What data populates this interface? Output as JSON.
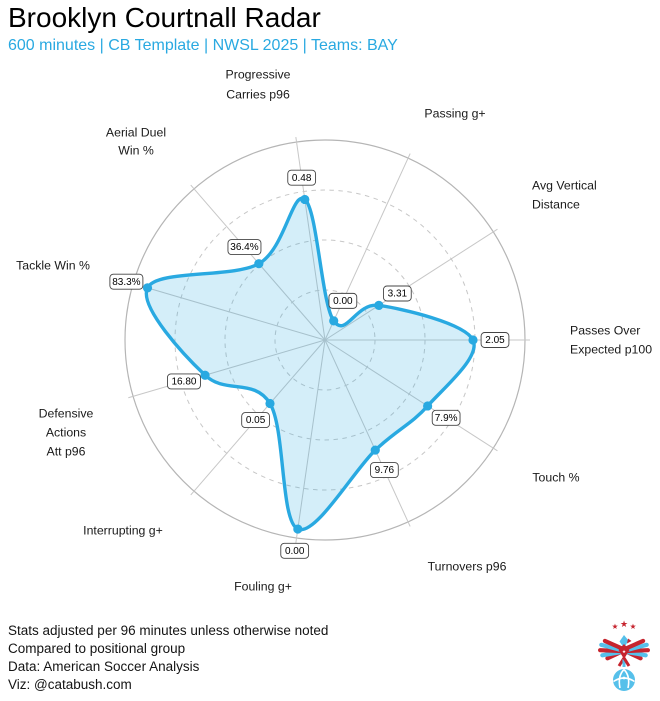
{
  "header": {
    "title": "Brooklyn Courtnall Radar",
    "subtitle": "600 minutes | CB Template | NWSL 2025 | Teams: BAY"
  },
  "chart_data": {
    "type": "radar",
    "title": "Brooklyn Courtnall Radar",
    "subtitle": "600 minutes | CB Template | NWSL 2025 | Teams: BAY",
    "axes": [
      {
        "label": [
          "Progressive",
          "Carries p96"
        ],
        "value": "0.48",
        "percentile_frac": 0.71
      },
      {
        "label": [
          "Passing g+"
        ],
        "value": "0.00",
        "percentile_frac": 0.105
      },
      {
        "label": [
          "Avg Vertical",
          "Distance"
        ],
        "value": "3.31",
        "percentile_frac": 0.32
      },
      {
        "label": [
          "Passes Over",
          "Expected p100"
        ],
        "value": "2.05",
        "percentile_frac": 0.74
      },
      {
        "label": [
          "Touch %"
        ],
        "value": "7.9%",
        "percentile_frac": 0.61
      },
      {
        "label": [
          "Turnovers p96"
        ],
        "value": "9.76",
        "percentile_frac": 0.605
      },
      {
        "label": [
          "Fouling g+"
        ],
        "value": "0.00",
        "percentile_frac": 0.955
      },
      {
        "label": [
          "Interrupting g+"
        ],
        "value": "0.05",
        "percentile_frac": 0.42
      },
      {
        "label": [
          "Defensive",
          "Actions",
          "Att p96"
        ],
        "value": "16.80",
        "percentile_frac": 0.625
      },
      {
        "label": [
          "Tackle Win %"
        ],
        "value": "83.3%",
        "percentile_frac": 0.925
      },
      {
        "label": [
          "Aerial Duel",
          "Win %"
        ],
        "value": "36.4%",
        "percentile_frac": 0.505
      }
    ],
    "layout_hints": {
      "start_angle_deg": 98.18,
      "direction": "clockwise",
      "rings_dashed_fracs": [
        0.25,
        0.5,
        0.75
      ],
      "outer_ring_frac": 1.0,
      "grid": "polar",
      "legend": "none"
    }
  },
  "colors": {
    "blue": "#29A9E1",
    "grid": "#C7C7C7",
    "grid_strong": "#B5B5B5",
    "text": "#1A1A1A",
    "logo_red": "#C6242E",
    "logo_blue": "#56C0EA"
  },
  "footer": {
    "lines": [
      "Stats adjusted per 96 minutes unless otherwise noted",
      "Compared to positional group",
      "Data: American Soccer Analysis",
      "Viz: @catabush.com"
    ]
  },
  "logo": {
    "name": "eagle-ball-crest"
  }
}
